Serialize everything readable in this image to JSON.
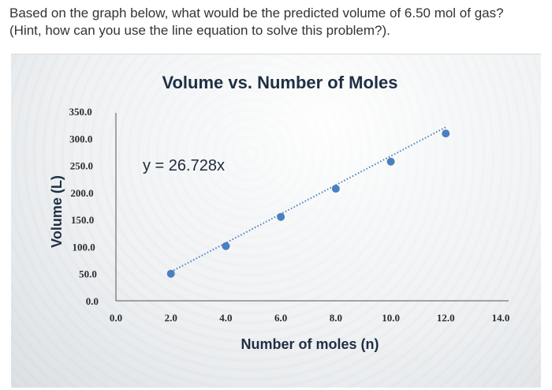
{
  "question": {
    "line1": "Based on the graph below, what would be the predicted volume of 6.50 mol of gas?",
    "line2": "(Hint, how can you use the line equation to solve this problem?)."
  },
  "colors": {
    "point": "#4a7fc0",
    "trendline": "#4a7fc0",
    "axis": "#555555",
    "title": "#1f2f44"
  },
  "chart_data": {
    "type": "scatter",
    "title": "Volume vs. Number of Moles",
    "xlabel": "Number of moles (n)",
    "ylabel": "Volume (L)",
    "x_ticks": [
      "0.0",
      "2.0",
      "4.0",
      "6.0",
      "8.0",
      "10.0",
      "12.0",
      "14.0"
    ],
    "y_ticks": [
      "0.0",
      "50.0",
      "100.0",
      "150.0",
      "200.0",
      "250.0",
      "300.0",
      "350.0"
    ],
    "xlim": [
      0,
      14
    ],
    "ylim": [
      0,
      350
    ],
    "grid": false,
    "series": [
      {
        "x": [
          2.0,
          4.0,
          6.0,
          8.0,
          10.0,
          12.0
        ],
        "y": [
          50.0,
          101.0,
          155.0,
          207.0,
          257.0,
          309.0
        ]
      }
    ],
    "trendline": {
      "equation": "y = 26.728x",
      "slope": 26.728,
      "style": "dotted"
    }
  }
}
